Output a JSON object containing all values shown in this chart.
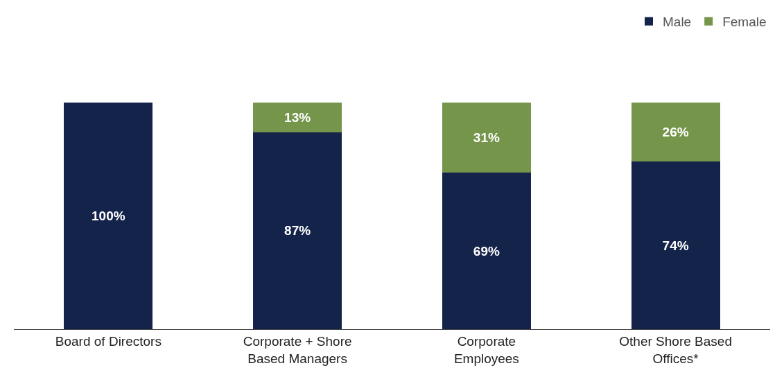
{
  "chart_data": {
    "type": "bar",
    "stacked": true,
    "categories": [
      "Board of Directors",
      "Corporate + Shore\nBased Managers",
      "Corporate\nEmployees",
      "Other Shore Based\nOffices*"
    ],
    "series": [
      {
        "name": "Male",
        "color": "#13234a",
        "values": [
          100,
          87,
          69,
          74
        ],
        "value_labels": [
          "100%",
          "87%",
          "69%",
          "74%"
        ]
      },
      {
        "name": "Female",
        "color": "#74954a",
        "values": [
          null,
          13,
          31,
          26
        ],
        "value_labels": [
          null,
          "13%",
          "31%",
          "26%"
        ]
      }
    ],
    "ylim": [
      0,
      100
    ],
    "tick_labels": "x",
    "legend": "top right"
  }
}
